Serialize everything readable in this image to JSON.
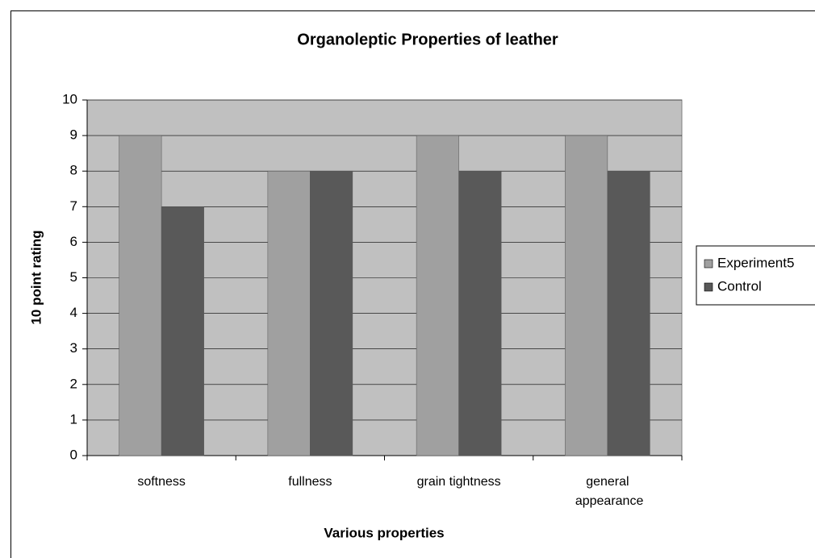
{
  "chart_data": {
    "type": "bar",
    "title": "Organoleptic Properties of leather",
    "x_label": "Various properties",
    "y_label": "10 point rating",
    "categories": [
      "softness",
      "fullness",
      "grain tightness",
      "general appearance"
    ],
    "series": [
      {
        "name": "Experiment5",
        "color": "#a0a0a0",
        "values": [
          9,
          8,
          9,
          9
        ]
      },
      {
        "name": "Control",
        "color": "#595959",
        "values": [
          7,
          8,
          8,
          8
        ]
      }
    ],
    "ylim": [
      0,
      10
    ],
    "yticks": [
      0,
      1,
      2,
      3,
      4,
      5,
      6,
      7,
      8,
      9,
      10
    ],
    "grid": true,
    "legend": "right"
  }
}
